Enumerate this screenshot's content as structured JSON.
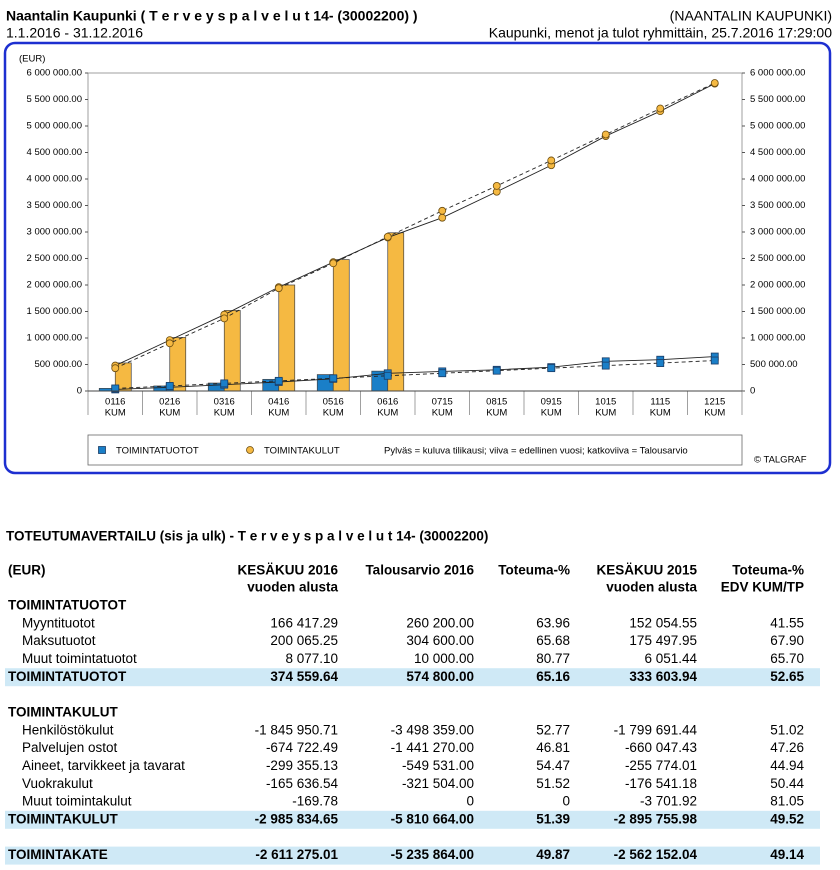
{
  "header": {
    "title": "Naantalin Kaupunki ( T e r v e y s p a l v e l u t  14- (30002200) )",
    "organization": "(NAANTALIN KAUPUNKI)",
    "period": "1.1.2016 - 31.12.2016",
    "report": "Kaupunki, menot ja tulot ryhmittäin, 25.7.2016 17:29:00"
  },
  "chart_data": {
    "type": "bar-line",
    "y_label": "(EUR)",
    "categories": [
      [
        "0116",
        "KUM"
      ],
      [
        "0216",
        "KUM"
      ],
      [
        "0316",
        "KUM"
      ],
      [
        "0416",
        "KUM"
      ],
      [
        "0516",
        "KUM"
      ],
      [
        "0616",
        "KUM"
      ],
      [
        "0715",
        "KUM"
      ],
      [
        "0815",
        "KUM"
      ],
      [
        "0915",
        "KUM"
      ],
      [
        "1015",
        "KUM"
      ],
      [
        "1115",
        "KUM"
      ],
      [
        "1215",
        "KUM"
      ]
    ],
    "ylim": [
      0,
      6000000
    ],
    "yticks": [
      0,
      {
        "value": 500000,
        "label": "500 000.00"
      },
      {
        "value": 1000000,
        "label": "1 000 000.00"
      },
      {
        "value": 1500000,
        "label": "1 500 000.00"
      },
      {
        "value": 2000000,
        "label": "2 000 000.00"
      },
      {
        "value": 2500000,
        "label": "2 500 000.00"
      },
      {
        "value": 3000000,
        "label": "3 000 000.00"
      },
      {
        "value": 3500000,
        "label": "3 500 000.00"
      },
      {
        "value": 4000000,
        "label": "4 000 000.00"
      },
      {
        "value": 4500000,
        "label": "4 500 000.00"
      },
      {
        "value": 5000000,
        "label": "5 000 000.00"
      },
      {
        "value": 5500000,
        "label": "5 500 000.00"
      },
      {
        "value": 6000000,
        "label": "6 000 000.00"
      }
    ],
    "y2lim": [
      0,
      6000000
    ],
    "y2ticks": [
      0,
      {
        "value": 500000,
        "label": "500 000.00"
      },
      {
        "value": 1000000,
        "label": "1 000 000.00"
      },
      {
        "value": 1500000,
        "label": "1 500 000.00"
      },
      {
        "value": 2000000,
        "label": "2 000 000.00"
      },
      {
        "value": 2500000,
        "label": "2 500 000.00"
      },
      {
        "value": 3000000,
        "label": "3 000 000.00"
      },
      {
        "value": 3500000,
        "label": "3 500 000.00"
      },
      {
        "value": 4000000,
        "label": "4 000 000.00"
      },
      {
        "value": 4500000,
        "label": "4 500 000.00"
      },
      {
        "value": 5000000,
        "label": "5 000 000.00"
      },
      {
        "value": 5500000,
        "label": "5 500 000.00"
      },
      {
        "value": 6000000,
        "label": "6 000 000.00"
      }
    ],
    "series": [
      {
        "name": "TOIMINTATUOTOT",
        "color": "#1a7fc8",
        "marker": "square",
        "values": [
          50000,
          95000,
          150000,
          220000,
          310000,
          374560,
          null,
          null,
          null,
          null,
          null,
          null
        ],
        "previous_year": [
          30000,
          70000,
          120000,
          170000,
          230000,
          333604,
          370000,
          400000,
          450000,
          560000,
          590000,
          650000
        ],
        "budget": [
          47900,
          95800,
          143700,
          191600,
          239500,
          287400,
          335300,
          383200,
          431100,
          479000,
          526900,
          574800
        ]
      },
      {
        "name": "TOIMINTAKULUT",
        "color": "#f5b942",
        "marker": "circle",
        "values": [
          530000,
          1010000,
          1520000,
          2000000,
          2480000,
          2985835,
          null,
          null,
          null,
          null,
          null,
          null
        ],
        "previous_year": [
          480000,
          960000,
          1440000,
          1960000,
          2430000,
          2895756,
          3270000,
          3760000,
          4260000,
          4810000,
          5280000,
          5800000
        ],
        "budget": [
          430000,
          900000,
          1370000,
          1940000,
          2410000,
          2910000,
          3400000,
          3870000,
          4350000,
          4840000,
          5330000,
          5810664
        ]
      }
    ],
    "legend_note": "Pylväs = kuluva tilikausi; viiva = edellinen vuosi; katkoviiva = Talousarvio",
    "credit": "© TALGRAF"
  },
  "table": {
    "title": "TOTEUTUMAVERTAILU (sis ja ulk) - T e r v e y s p a l v e l u t  14- (30002200)",
    "columns": [
      [
        "(EUR)"
      ],
      [
        "KESÄKUU 2016",
        "vuoden alusta"
      ],
      [
        "Talousarvio 2016"
      ],
      [
        "Toteuma-%"
      ],
      [
        "KESÄKUU 2015",
        "vuoden alusta"
      ],
      [
        "Toteuma-%",
        "EDV KUM/TP"
      ]
    ],
    "sections": [
      {
        "title": "TOIMINTATUOTOT",
        "rows": [
          [
            "Myyntituotot",
            "166 417.29",
            "260 200.00",
            "63.96",
            "152 054.55",
            "41.55"
          ],
          [
            "Maksutuotot",
            "200 065.25",
            "304 600.00",
            "65.68",
            "175 497.95",
            "67.90"
          ],
          [
            "Muut toimintatuotot",
            "8 077.10",
            "10 000.00",
            "80.77",
            "6 051.44",
            "65.70"
          ]
        ],
        "total": [
          "TOIMINTATUOTOT",
          "374 559.64",
          "574 800.00",
          "65.16",
          "333 603.94",
          "52.65"
        ]
      },
      {
        "title": "TOIMINTAKULUT",
        "rows": [
          [
            "Henkilöstökulut",
            "-1 845 950.71",
            "-3 498 359.00",
            "52.77",
            "-1 799 691.44",
            "51.02"
          ],
          [
            "Palvelujen ostot",
            "-674 722.49",
            "-1 441 270.00",
            "46.81",
            "-660 047.43",
            "47.26"
          ],
          [
            "Aineet, tarvikkeet ja tavarat",
            "-299 355.13",
            "-549 531.00",
            "54.47",
            "-255 774.01",
            "44.94"
          ],
          [
            "Vuokrakulut",
            "-165 636.54",
            "-321 504.00",
            "51.52",
            "-176 541.18",
            "50.44"
          ],
          [
            "Muut toimintakulut",
            "-169.78",
            "0",
            "0",
            "-3 701.92",
            "81.05"
          ]
        ],
        "total": [
          "TOIMINTAKULUT",
          "-2 985 834.65",
          "-5 810 664.00",
          "51.39",
          "-2 895 755.98",
          "49.52"
        ]
      }
    ],
    "result": [
      "TOIMINTAKATE",
      "-2 611 275.01",
      "-5 235 864.00",
      "49.87",
      "-2 562 152.04",
      "49.14"
    ]
  }
}
